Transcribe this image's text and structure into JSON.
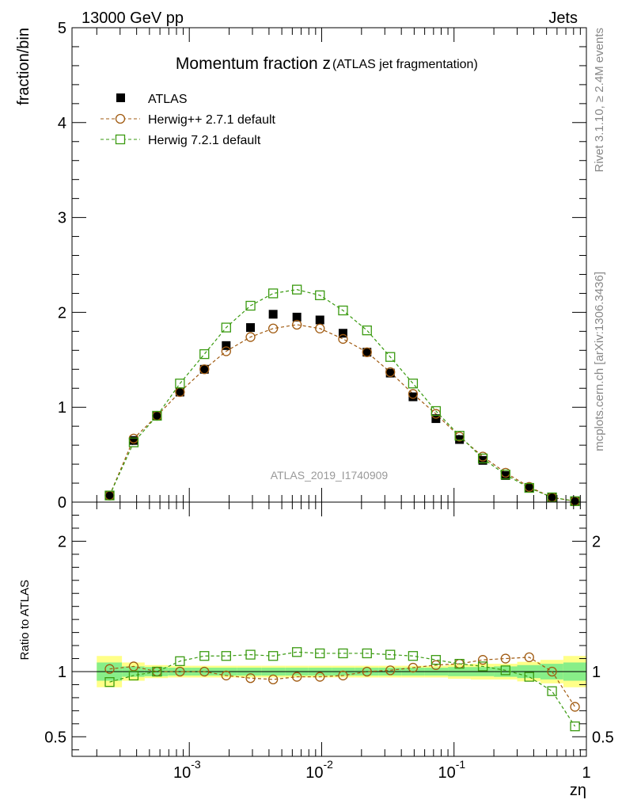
{
  "header": {
    "left": "13000 GeV pp",
    "right": "Jets"
  },
  "side_labels": {
    "rivet": "Rivet 3.1.10, ≥ 2.4M events",
    "source": "mcplots.cern.ch [arXiv:1306.3436]"
  },
  "chart_data": [
    {
      "type": "scatter",
      "panel": "main",
      "title_main": "Momentum fraction z",
      "title_sub": "(ATLAS jet fragmentation)",
      "ylabel": "fraction/bin",
      "xlabel": "zη",
      "xscale": "log",
      "xlim": [
        0.00013,
        1.0
      ],
      "ylim": [
        0,
        5
      ],
      "yticks": [
        "0",
        "1",
        "2",
        "3",
        "4",
        "5"
      ],
      "watermark": "ATLAS_2019_I1740909",
      "legend_position": "top-left",
      "x": [
        0.00025,
        0.00038,
        0.00057,
        0.00085,
        0.0013,
        0.0019,
        0.0029,
        0.0043,
        0.0065,
        0.0097,
        0.0145,
        0.022,
        0.033,
        0.049,
        0.073,
        0.11,
        0.165,
        0.245,
        0.37,
        0.55,
        0.82
      ],
      "series": [
        {
          "name": "ATLAS",
          "color": "#000000",
          "marker": "filled-square",
          "values": [
            0.07,
            0.65,
            0.91,
            1.16,
            1.4,
            1.65,
            1.84,
            1.98,
            1.95,
            1.92,
            1.78,
            1.58,
            1.36,
            1.11,
            0.88,
            0.66,
            0.44,
            0.28,
            0.15,
            0.05,
            0.01
          ]
        },
        {
          "name": "Herwig++ 2.7.1 default",
          "color": "#a05a10",
          "marker": "open-circle",
          "values": [
            0.07,
            0.67,
            0.91,
            1.16,
            1.4,
            1.59,
            1.74,
            1.83,
            1.87,
            1.83,
            1.72,
            1.58,
            1.37,
            1.14,
            0.93,
            0.69,
            0.48,
            0.31,
            0.16,
            0.05,
            0.01
          ]
        },
        {
          "name": "Herwig 7.2.1 default",
          "color": "#3a9a10",
          "marker": "open-square",
          "values": [
            0.07,
            0.63,
            0.91,
            1.25,
            1.56,
            1.84,
            2.07,
            2.2,
            2.24,
            2.18,
            2.02,
            1.81,
            1.53,
            1.25,
            0.96,
            0.7,
            0.46,
            0.29,
            0.15,
            0.05,
            0.01
          ]
        }
      ]
    },
    {
      "type": "line",
      "panel": "ratio",
      "ylabel": "Ratio to ATLAS",
      "yscale": "linear",
      "ylim": [
        0.35,
        2.3
      ],
      "yticks": [
        "0.5",
        "1",
        "2"
      ],
      "xticks": [
        "10",
        "10",
        "10",
        "1"
      ],
      "xtick_exponents": [
        "-3",
        "-2",
        "-1",
        ""
      ],
      "reference_line": 1,
      "band_inner_color": "#88ee88",
      "band_outer_color": "#ffff88",
      "band_edges": [
        0.0002,
        0.00031,
        0.00046,
        0.00069,
        0.00104,
        0.00156,
        0.0023,
        0.0035,
        0.0053,
        0.0079,
        0.0119,
        0.0178,
        0.027,
        0.04,
        0.06,
        0.09,
        0.134,
        0.2,
        0.3,
        0.45,
        0.67,
        1.0
      ],
      "band_inner": [
        0.07,
        0.04,
        0.035,
        0.03,
        0.03,
        0.03,
        0.03,
        0.03,
        0.03,
        0.03,
        0.03,
        0.03,
        0.03,
        0.03,
        0.03,
        0.035,
        0.035,
        0.04,
        0.05,
        0.06,
        0.07
      ],
      "band_outer": [
        0.12,
        0.07,
        0.05,
        0.045,
        0.045,
        0.045,
        0.045,
        0.045,
        0.045,
        0.045,
        0.045,
        0.045,
        0.045,
        0.045,
        0.045,
        0.055,
        0.06,
        0.06,
        0.075,
        0.09,
        0.12
      ],
      "series": [
        {
          "name": "Herwig++ 2.7.1 default",
          "color": "#a05a10",
          "marker": "open-circle",
          "values": [
            1.02,
            1.04,
            1.0,
            1.0,
            1.0,
            0.97,
            0.95,
            0.94,
            0.96,
            0.96,
            0.97,
            1.0,
            1.01,
            1.03,
            1.05,
            1.06,
            1.09,
            1.1,
            1.11,
            1.0,
            0.73
          ]
        },
        {
          "name": "Herwig 7.2.1 default",
          "color": "#3a9a10",
          "marker": "open-square",
          "values": [
            0.92,
            0.97,
            1.0,
            1.08,
            1.12,
            1.12,
            1.13,
            1.12,
            1.15,
            1.14,
            1.14,
            1.14,
            1.13,
            1.12,
            1.09,
            1.06,
            1.04,
            1.01,
            0.96,
            0.85,
            0.58
          ]
        }
      ]
    }
  ]
}
